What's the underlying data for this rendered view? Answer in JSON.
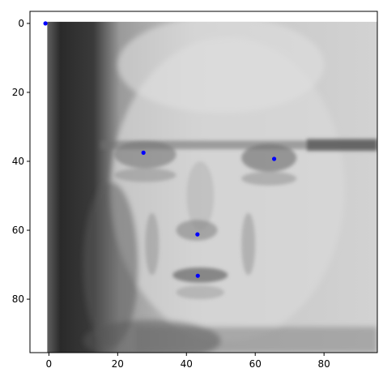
{
  "chart_data": {
    "type": "scatter",
    "background": "grayscale image (96 x 96 px face)",
    "image_extent": {
      "x": [
        -0.5,
        95.5
      ],
      "y": [
        95.5,
        -0.5
      ]
    },
    "xlim": [
      -5.5,
      95.5
    ],
    "ylim": [
      95.5,
      -3.5
    ],
    "y_inverted": true,
    "x_ticks": [
      0,
      20,
      40,
      60,
      80
    ],
    "y_ticks": [
      0,
      20,
      40,
      60,
      80
    ],
    "grid": false,
    "title": "",
    "xlabel": "",
    "ylabel": "",
    "series": [
      {
        "color": "#0000ff",
        "points": [
          {
            "x": -1,
            "y": 0
          },
          {
            "x": 27.5,
            "y": 37.5
          },
          {
            "x": 65.5,
            "y": 39.3
          },
          {
            "x": 43.2,
            "y": 61.2
          },
          {
            "x": 43.3,
            "y": 73.2
          }
        ]
      }
    ]
  }
}
